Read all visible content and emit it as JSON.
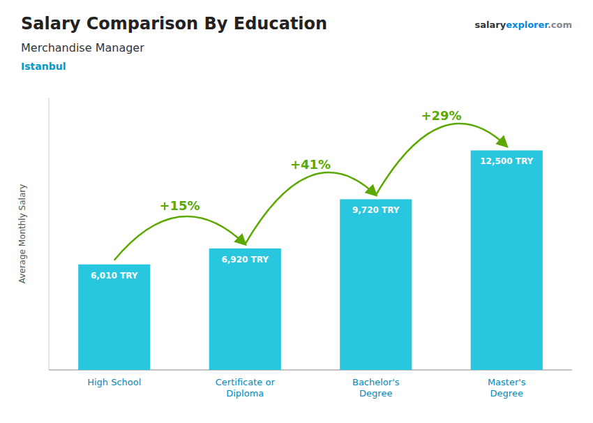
{
  "chart_data": {
    "type": "bar",
    "title": "Salary Comparison By Education",
    "subtitle": "Merchandise Manager",
    "city": "Istanbul",
    "watermark": [
      "salary",
      "explorer",
      ".com"
    ],
    "y_label": "Average Monthly Salary",
    "categories": [
      "High School",
      "Certificate or\nDiploma",
      "Bachelor's\nDegree",
      "Master's\nDegree"
    ],
    "values": [
      6010,
      6920,
      9720,
      12500
    ],
    "value_labels": [
      "6,010 TRY",
      "6,920 TRY",
      "9,720 TRY",
      "12,500 TRY"
    ],
    "data_labels": true,
    "annotations": [
      "+15%",
      "+41%",
      "+29%"
    ],
    "color": "#29c6e0",
    "ylim": [
      0,
      15500
    ],
    "tick_labels": "x",
    "grid": false
  }
}
